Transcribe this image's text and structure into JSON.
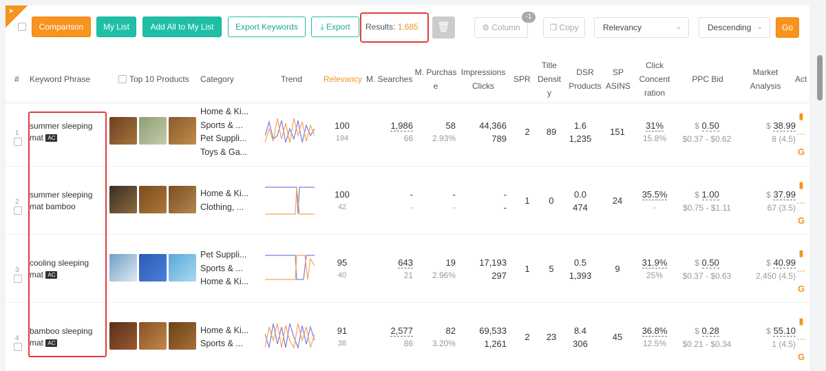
{
  "toolbar": {
    "comparison": "Comparison",
    "my_list": "My List",
    "add_all": "Add All to My List",
    "export_keywords": "Export Keywords",
    "export": "Export",
    "results_label": "Results:",
    "results_value": "1,685",
    "column": "Column",
    "column_badge": "-1",
    "copy": "Copy",
    "sort_field": "Relevancy",
    "sort_order": "Descending",
    "go": "Go"
  },
  "headers": {
    "num": "#",
    "keyword": "Keyword Phrase",
    "top10": "Top 10 Products",
    "category": "Category",
    "trend": "Trend",
    "relevancy": "Relevancy",
    "m_searches": "M. Searches",
    "m_purchase_1": "M. Purchas",
    "m_purchase_2": "e",
    "impressions": "Impressions",
    "clicks": "Clicks",
    "spr": "SPR",
    "title_1": "Title",
    "title_2": "Densit",
    "title_3": "y",
    "dsr_1": "DSR",
    "dsr_2": "Products",
    "sp_1": "SP",
    "sp_2": "ASINS",
    "click_1": "Click",
    "click_2": "Concent",
    "click_3": "ration",
    "ppc": "PPC Bid",
    "market_1": "Market",
    "market_2": "Analysis",
    "act": "Act"
  },
  "rows": [
    {
      "num": "1",
      "kw1": "summer sleeping",
      "kw2": "mat",
      "ac": "AC",
      "cats": [
        "Home & Ki...",
        "Sports & ...",
        "Pet Suppli...",
        "Toys & Ga..."
      ],
      "rel": "100",
      "rel_sub": "194",
      "ms": "1,986",
      "ms_sub": "66",
      "mp": "58",
      "mp_sub": "2.93%",
      "imp": "44,366",
      "clk": "789",
      "spr": "2",
      "td": "89",
      "dsr": "1.6",
      "dsr_sub": "1,235",
      "sp": "151",
      "cc": "31%",
      "cc_sub": "15.8%",
      "ppc": "0.50",
      "ppc_range": "$0.37 - $0.62",
      "mkt": "38.99",
      "mkt_sub": "8 (4.5)"
    },
    {
      "num": "2",
      "kw1": "summer sleeping",
      "kw2": "mat bamboo",
      "ac": "",
      "cats": [
        "Home & Ki...",
        "Clothing, ..."
      ],
      "rel": "100",
      "rel_sub": "42",
      "ms": "-",
      "ms_sub": "-",
      "mp": "-",
      "mp_sub": "-",
      "imp": "-",
      "clk": "-",
      "spr": "1",
      "td": "0",
      "dsr": "0.0",
      "dsr_sub": "474",
      "sp": "24",
      "cc": "35.5%",
      "cc_sub": "-",
      "ppc": "1.00",
      "ppc_range": "$0.75 - $1.11",
      "mkt": "37.99",
      "mkt_sub": "67 (3.5)"
    },
    {
      "num": "3",
      "kw1": "cooling sleeping",
      "kw2": "mat",
      "ac": "AC",
      "cats": [
        "Pet Suppli...",
        "Sports & ...",
        "Home & Ki..."
      ],
      "rel": "95",
      "rel_sub": "40",
      "ms": "643",
      "ms_sub": "21",
      "mp": "19",
      "mp_sub": "2.96%",
      "imp": "17,193",
      "clk": "297",
      "spr": "1",
      "td": "5",
      "dsr": "0.5",
      "dsr_sub": "1,393",
      "sp": "9",
      "cc": "31.9%",
      "cc_sub": "25%",
      "ppc": "0.50",
      "ppc_range": "$0.37 - $0.63",
      "mkt": "40.99",
      "mkt_sub": "2,450 (4.5)"
    },
    {
      "num": "4",
      "kw1": "bamboo sleeping",
      "kw2": "mat",
      "ac": "AC",
      "cats": [
        "Home & Ki...",
        "Sports & ..."
      ],
      "rel": "91",
      "rel_sub": "38",
      "ms": "2,577",
      "ms_sub": "86",
      "mp": "82",
      "mp_sub": "3.20%",
      "imp": "69,533",
      "clk": "1,261",
      "spr": "2",
      "td": "23",
      "dsr": "8.4",
      "dsr_sub": "306",
      "sp": "45",
      "cc": "36.8%",
      "cc_sub": "12.5%",
      "ppc": "0.28",
      "ppc_range": "$0.21 - $0.34",
      "mkt": "55.10",
      "mkt_sub": "1 (4.5)"
    }
  ],
  "currency": "$",
  "colors": {
    "orange": "#f7931e",
    "teal": "#1fbfa7",
    "highlight": "#e23b3b"
  }
}
